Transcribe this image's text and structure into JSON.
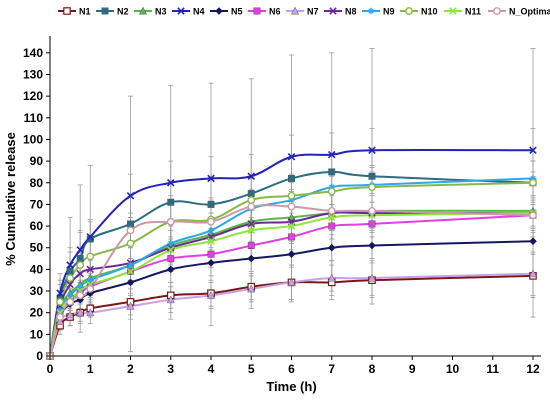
{
  "chart_data": {
    "type": "line",
    "title": "",
    "xlabel": "Time (h)",
    "ylabel": "% Cumulative release",
    "xlim": [
      0,
      12
    ],
    "ylim": [
      0,
      145
    ],
    "xticks": [
      0,
      1,
      2,
      3,
      4,
      5,
      6,
      7,
      8,
      9,
      10,
      11,
      12
    ],
    "yticks": [
      0,
      10,
      20,
      30,
      40,
      50,
      60,
      70,
      80,
      90,
      100,
      110,
      120,
      130,
      140
    ],
    "grid": false,
    "legend_position": "top",
    "x": [
      0,
      0.25,
      0.5,
      0.75,
      1,
      2,
      3,
      4,
      5,
      6,
      7,
      8,
      12
    ],
    "series": [
      {
        "name": "N1",
        "color": "#7a1818",
        "marker": "square-open",
        "values": [
          0,
          14,
          18,
          20,
          22,
          25,
          28,
          29,
          32,
          34,
          34,
          35,
          37
        ],
        "errors": [
          0,
          4,
          4,
          4,
          4,
          6,
          6,
          6,
          6,
          8,
          8,
          8,
          10
        ]
      },
      {
        "name": "N2",
        "color": "#2a6e82",
        "marker": "square",
        "values": [
          0,
          26,
          39,
          45,
          54,
          61,
          71,
          70,
          75,
          82,
          85,
          83,
          80
        ],
        "errors": [
          0,
          12,
          25,
          34,
          34,
          59,
          54,
          56,
          53,
          57,
          55,
          59,
          62
        ]
      },
      {
        "name": "N3",
        "color": "#58b84a",
        "marker": "triangle",
        "values": [
          0,
          22,
          29,
          33,
          36,
          42,
          51,
          56,
          62,
          64,
          66,
          67,
          67
        ],
        "errors": [
          0,
          6,
          8,
          8,
          8,
          8,
          10,
          10,
          10,
          12,
          12,
          12,
          12
        ]
      },
      {
        "name": "N4",
        "color": "#2222b8",
        "marker": "x",
        "values": [
          0,
          29,
          42,
          49,
          55,
          74,
          80,
          82,
          83,
          92,
          93,
          95,
          95
        ],
        "errors": [
          0,
          6,
          8,
          8,
          8,
          10,
          10,
          10,
          10,
          10,
          10,
          10,
          10
        ]
      },
      {
        "name": "N5",
        "color": "#161660",
        "marker": "diamond",
        "values": [
          0,
          18,
          24,
          26,
          29,
          34,
          40,
          43,
          45,
          47,
          50,
          51,
          53
        ],
        "errors": [
          0,
          4,
          5,
          5,
          5,
          6,
          6,
          6,
          6,
          6,
          6,
          6,
          6
        ]
      },
      {
        "name": "N6",
        "color": "#e23ee2",
        "marker": "square",
        "values": [
          0,
          20,
          26,
          29,
          32,
          39,
          45,
          47,
          51,
          55,
          60,
          61,
          65
        ],
        "errors": [
          0,
          4,
          5,
          5,
          5,
          6,
          6,
          6,
          6,
          6,
          6,
          6,
          6
        ]
      },
      {
        "name": "N7",
        "color": "#c8a0ea",
        "marker": "triangle",
        "values": [
          0,
          16,
          19,
          20,
          20,
          23,
          26,
          28,
          31,
          34,
          36,
          36,
          38
        ],
        "errors": [
          0,
          4,
          5,
          5,
          5,
          6,
          6,
          6,
          6,
          8,
          8,
          8,
          10
        ]
      },
      {
        "name": "N8",
        "color": "#6a2a9a",
        "marker": "x",
        "values": [
          0,
          23,
          33,
          38,
          40,
          43,
          50,
          55,
          61,
          62,
          66,
          66,
          66
        ],
        "errors": [
          0,
          5,
          6,
          6,
          6,
          8,
          8,
          8,
          8,
          8,
          8,
          8,
          8
        ]
      },
      {
        "name": "N9",
        "color": "#2ea8e8",
        "marker": "star",
        "values": [
          0,
          21,
          28,
          32,
          35,
          42,
          52,
          58,
          68,
          72,
          78,
          79,
          82
        ],
        "errors": [
          0,
          5,
          6,
          6,
          6,
          8,
          8,
          8,
          8,
          8,
          8,
          8,
          8
        ]
      },
      {
        "name": "N10",
        "color": "#88b848",
        "marker": "circle",
        "values": [
          0,
          25,
          36,
          42,
          46,
          52,
          62,
          63,
          72,
          74,
          76,
          78,
          80
        ],
        "errors": [
          0,
          8,
          12,
          16,
          16,
          12,
          12,
          10,
          10,
          10,
          10,
          10,
          10
        ]
      },
      {
        "name": "N11",
        "color": "#8ee83a",
        "marker": "x",
        "values": [
          0,
          20,
          26,
          30,
          33,
          39,
          49,
          53,
          58,
          60,
          64,
          65,
          66
        ],
        "errors": [
          0,
          4,
          5,
          5,
          5,
          6,
          6,
          6,
          6,
          6,
          6,
          6,
          6
        ]
      },
      {
        "name": "N_Optimal",
        "color": "#c89aa8",
        "marker": "circle",
        "values": [
          0,
          18,
          25,
          28,
          31,
          58,
          62,
          62,
          69,
          69,
          67,
          67,
          65
        ],
        "errors": [
          0,
          5,
          6,
          6,
          6,
          8,
          8,
          8,
          8,
          8,
          8,
          8,
          8
        ]
      }
    ]
  }
}
